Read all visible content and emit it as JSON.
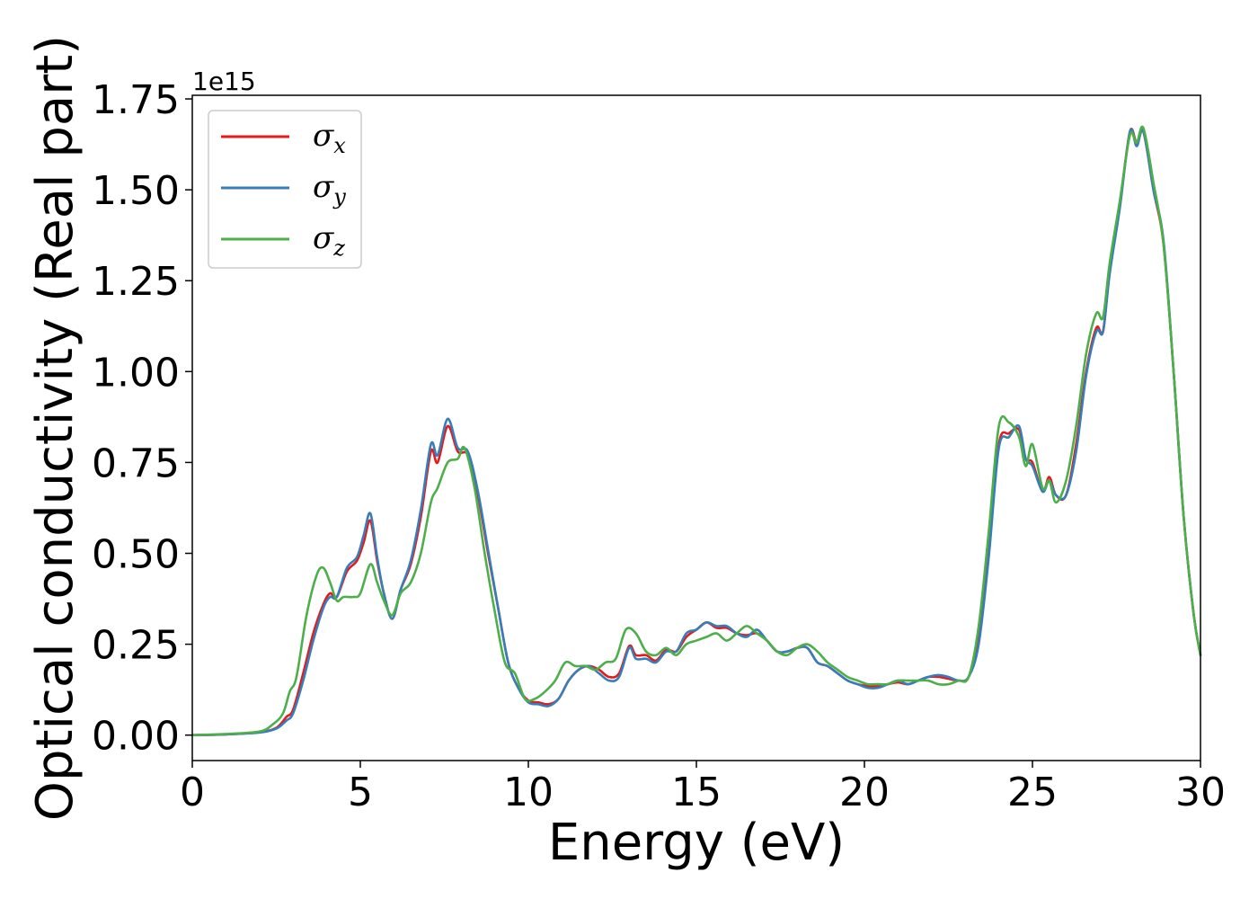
{
  "chart_data": {
    "type": "line",
    "title": "",
    "xlabel": "Energy (eV)",
    "ylabel": "Optical conductivity (Real part)",
    "y_offset_label": "1e15",
    "xlim": [
      0,
      30
    ],
    "ylim": [
      -0.07,
      1.76
    ],
    "xticks": [
      0,
      5,
      10,
      15,
      20,
      25,
      30
    ],
    "xtick_labels": [
      "0",
      "5",
      "10",
      "15",
      "20",
      "25",
      "30"
    ],
    "yticks": [
      0.0,
      0.25,
      0.5,
      0.75,
      1.0,
      1.25,
      1.5,
      1.75
    ],
    "ytick_labels": [
      "0.00",
      "0.25",
      "0.50",
      "0.75",
      "1.00",
      "1.25",
      "1.50",
      "1.75"
    ],
    "grid": false,
    "legend_position": "top-left",
    "series": [
      {
        "name": "σx",
        "symbol": "σ",
        "subscript": "x",
        "color": "#e41a1c",
        "x": [
          0,
          1,
          2,
          2.5,
          2.8,
          3.0,
          3.3,
          3.6,
          3.9,
          4.1,
          4.3,
          4.6,
          4.9,
          5.1,
          5.3,
          5.5,
          5.7,
          5.95,
          6.2,
          6.5,
          6.8,
          7.1,
          7.3,
          7.6,
          7.9,
          8.2,
          8.5,
          8.8,
          9.1,
          9.4,
          9.7,
          10.0,
          10.3,
          10.6,
          10.9,
          11.2,
          11.5,
          11.8,
          12.1,
          12.4,
          12.7,
          13.0,
          13.2,
          13.5,
          13.8,
          14.1,
          14.4,
          14.7,
          15.0,
          15.3,
          15.6,
          15.9,
          16.2,
          16.5,
          16.8,
          17.1,
          17.4,
          17.7,
          18.0,
          18.3,
          18.6,
          18.9,
          19.2,
          19.5,
          19.8,
          20.1,
          20.4,
          20.7,
          21.0,
          21.3,
          21.6,
          21.9,
          22.2,
          22.5,
          22.8,
          23.1,
          23.4,
          23.7,
          24.0,
          24.3,
          24.6,
          24.8,
          25.0,
          25.3,
          25.5,
          25.7,
          26.0,
          26.3,
          26.6,
          26.9,
          27.1,
          27.3,
          27.6,
          27.9,
          28.1,
          28.3,
          28.6,
          28.9,
          29.2,
          29.5,
          29.8,
          30.0
        ],
        "y": [
          0.0,
          0.002,
          0.008,
          0.02,
          0.05,
          0.07,
          0.17,
          0.28,
          0.36,
          0.39,
          0.38,
          0.45,
          0.48,
          0.53,
          0.59,
          0.48,
          0.39,
          0.32,
          0.4,
          0.47,
          0.6,
          0.78,
          0.75,
          0.85,
          0.78,
          0.77,
          0.66,
          0.5,
          0.35,
          0.2,
          0.13,
          0.095,
          0.09,
          0.085,
          0.1,
          0.15,
          0.18,
          0.19,
          0.18,
          0.16,
          0.17,
          0.245,
          0.22,
          0.22,
          0.205,
          0.235,
          0.23,
          0.27,
          0.29,
          0.31,
          0.295,
          0.295,
          0.28,
          0.275,
          0.28,
          0.26,
          0.23,
          0.23,
          0.24,
          0.24,
          0.2,
          0.19,
          0.17,
          0.15,
          0.14,
          0.135,
          0.135,
          0.14,
          0.145,
          0.14,
          0.15,
          0.16,
          0.16,
          0.155,
          0.15,
          0.16,
          0.26,
          0.5,
          0.8,
          0.83,
          0.84,
          0.76,
          0.75,
          0.67,
          0.71,
          0.66,
          0.66,
          0.8,
          1.0,
          1.12,
          1.11,
          1.28,
          1.46,
          1.66,
          1.63,
          1.66,
          1.5,
          1.35,
          1.0,
          0.6,
          0.33,
          0.22
        ]
      },
      {
        "name": "σy",
        "symbol": "σ",
        "subscript": "y",
        "color": "#377eb8",
        "x": [
          0,
          1,
          2,
          2.5,
          2.8,
          3.0,
          3.3,
          3.6,
          3.9,
          4.1,
          4.3,
          4.6,
          4.9,
          5.1,
          5.3,
          5.5,
          5.7,
          5.95,
          6.2,
          6.5,
          6.8,
          7.1,
          7.3,
          7.6,
          7.9,
          8.2,
          8.5,
          8.8,
          9.1,
          9.4,
          9.7,
          10.0,
          10.3,
          10.6,
          10.9,
          11.2,
          11.5,
          11.8,
          12.1,
          12.4,
          12.7,
          13.0,
          13.2,
          13.5,
          13.8,
          14.1,
          14.4,
          14.7,
          15.0,
          15.3,
          15.6,
          15.9,
          16.2,
          16.5,
          16.8,
          17.1,
          17.4,
          17.7,
          18.0,
          18.3,
          18.6,
          18.9,
          19.2,
          19.5,
          19.8,
          20.1,
          20.4,
          20.7,
          21.0,
          21.3,
          21.6,
          21.9,
          22.2,
          22.5,
          22.8,
          23.1,
          23.4,
          23.7,
          24.0,
          24.3,
          24.6,
          24.8,
          25.0,
          25.3,
          25.5,
          25.7,
          26.0,
          26.3,
          26.6,
          26.9,
          27.1,
          27.3,
          27.6,
          27.9,
          28.1,
          28.3,
          28.6,
          28.9,
          29.2,
          29.5,
          29.8,
          30.0
        ],
        "y": [
          0.0,
          0.002,
          0.007,
          0.018,
          0.04,
          0.06,
          0.15,
          0.26,
          0.35,
          0.38,
          0.38,
          0.46,
          0.49,
          0.55,
          0.61,
          0.49,
          0.39,
          0.32,
          0.4,
          0.48,
          0.62,
          0.8,
          0.77,
          0.87,
          0.79,
          0.78,
          0.67,
          0.51,
          0.35,
          0.2,
          0.13,
          0.09,
          0.085,
          0.08,
          0.1,
          0.15,
          0.18,
          0.19,
          0.17,
          0.15,
          0.16,
          0.24,
          0.21,
          0.21,
          0.2,
          0.23,
          0.23,
          0.28,
          0.29,
          0.31,
          0.3,
          0.3,
          0.28,
          0.27,
          0.29,
          0.26,
          0.23,
          0.23,
          0.24,
          0.24,
          0.2,
          0.19,
          0.17,
          0.15,
          0.14,
          0.13,
          0.13,
          0.14,
          0.15,
          0.14,
          0.15,
          0.16,
          0.165,
          0.16,
          0.15,
          0.16,
          0.25,
          0.49,
          0.79,
          0.82,
          0.85,
          0.76,
          0.74,
          0.67,
          0.7,
          0.66,
          0.66,
          0.78,
          0.99,
          1.11,
          1.11,
          1.27,
          1.45,
          1.66,
          1.62,
          1.66,
          1.5,
          1.36,
          1.0,
          0.6,
          0.33,
          0.22
        ]
      },
      {
        "name": "σz",
        "symbol": "σ",
        "subscript": "z",
        "color": "#4daf4a",
        "x": [
          0,
          1,
          2,
          2.4,
          2.7,
          2.9,
          3.1,
          3.4,
          3.7,
          3.9,
          4.1,
          4.3,
          4.5,
          4.8,
          5.0,
          5.3,
          5.5,
          5.7,
          5.95,
          6.2,
          6.5,
          6.8,
          7.1,
          7.3,
          7.6,
          7.9,
          8.1,
          8.4,
          8.7,
          9.0,
          9.3,
          9.6,
          9.9,
          10.2,
          10.5,
          10.8,
          11.1,
          11.4,
          11.7,
          12.0,
          12.3,
          12.6,
          12.9,
          13.2,
          13.5,
          13.8,
          14.1,
          14.4,
          14.7,
          15.0,
          15.3,
          15.6,
          15.9,
          16.2,
          16.5,
          16.8,
          17.1,
          17.4,
          17.7,
          18.0,
          18.3,
          18.6,
          18.9,
          19.2,
          19.5,
          19.8,
          20.1,
          20.4,
          20.7,
          21.0,
          21.3,
          21.6,
          21.9,
          22.2,
          22.5,
          22.8,
          23.1,
          23.4,
          23.7,
          24.0,
          24.3,
          24.6,
          24.8,
          25.0,
          25.3,
          25.5,
          25.7,
          26.0,
          26.3,
          26.6,
          26.9,
          27.1,
          27.3,
          27.6,
          27.9,
          28.1,
          28.3,
          28.6,
          28.9,
          29.2,
          29.5,
          29.8,
          30.0
        ],
        "y": [
          0.0,
          0.003,
          0.01,
          0.03,
          0.06,
          0.12,
          0.16,
          0.33,
          0.44,
          0.46,
          0.42,
          0.37,
          0.38,
          0.38,
          0.39,
          0.47,
          0.42,
          0.37,
          0.33,
          0.39,
          0.42,
          0.5,
          0.64,
          0.68,
          0.75,
          0.76,
          0.79,
          0.68,
          0.5,
          0.34,
          0.2,
          0.17,
          0.1,
          0.1,
          0.12,
          0.15,
          0.2,
          0.19,
          0.19,
          0.18,
          0.2,
          0.21,
          0.29,
          0.28,
          0.23,
          0.22,
          0.24,
          0.22,
          0.25,
          0.26,
          0.27,
          0.28,
          0.26,
          0.28,
          0.3,
          0.28,
          0.26,
          0.23,
          0.22,
          0.24,
          0.25,
          0.23,
          0.2,
          0.18,
          0.16,
          0.15,
          0.14,
          0.14,
          0.14,
          0.15,
          0.15,
          0.15,
          0.15,
          0.14,
          0.14,
          0.15,
          0.16,
          0.3,
          0.56,
          0.85,
          0.86,
          0.82,
          0.74,
          0.8,
          0.68,
          0.7,
          0.64,
          0.7,
          0.85,
          1.05,
          1.16,
          1.15,
          1.3,
          1.47,
          1.65,
          1.63,
          1.67,
          1.52,
          1.35,
          1.0,
          0.6,
          0.33,
          0.22
        ]
      }
    ]
  }
}
